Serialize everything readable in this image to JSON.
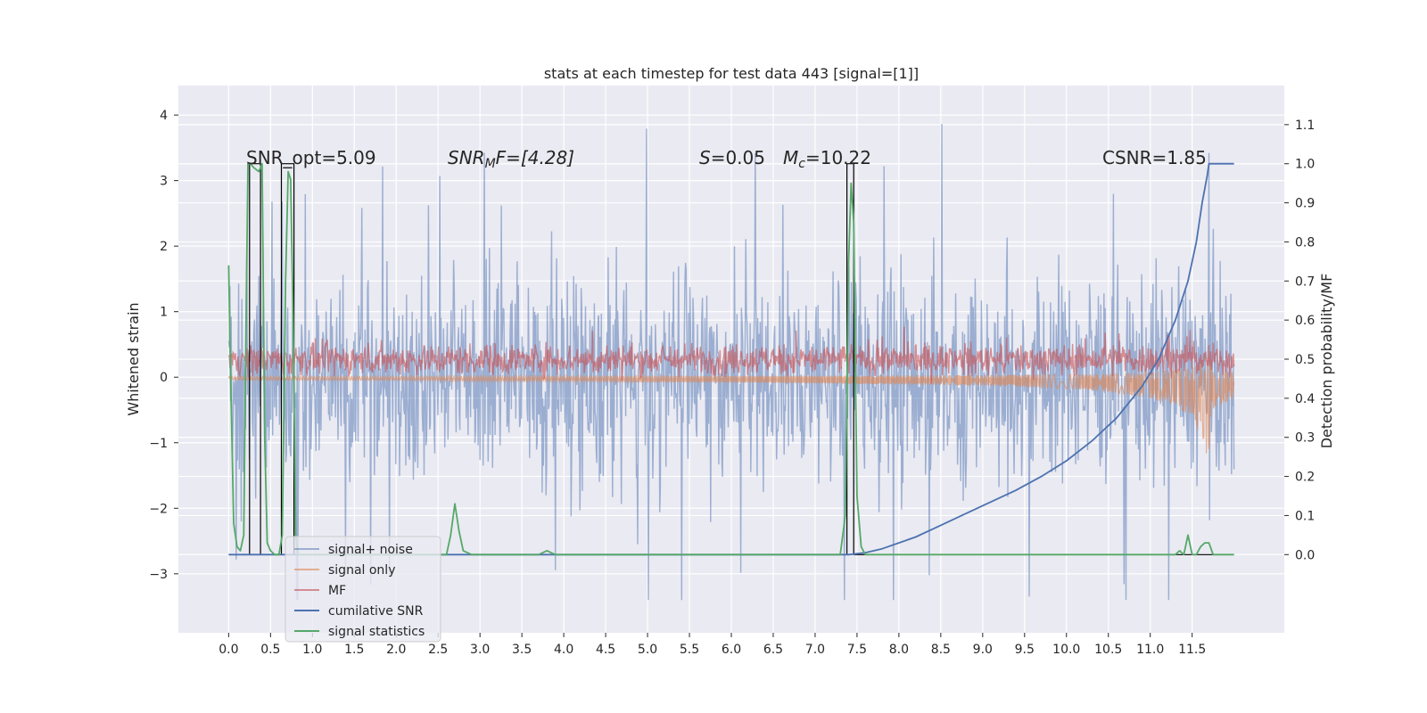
{
  "chart_data": {
    "type": "line",
    "title": "stats at each timestep for test data 443 [signal=[1]]",
    "ylabel_left": "Whitened strain",
    "ylabel_right": "Detection probability/MF",
    "x_ticks": [
      "0.0",
      "0.5",
      "1.0",
      "1.5",
      "2.0",
      "2.5",
      "3.0",
      "3.5",
      "4.0",
      "4.5",
      "5.0",
      "5.5",
      "6.0",
      "6.5",
      "7.0",
      "7.5",
      "8.0",
      "8.5",
      "9.0",
      "9.5",
      "10.0",
      "10.5",
      "11.0",
      "11.5"
    ],
    "x_range": [
      -0.6,
      12.6
    ],
    "y_left_ticks": [
      "4",
      "3",
      "2",
      "1",
      "0",
      "−1",
      "−2",
      "−3"
    ],
    "y_left_range": [
      -3.9,
      4.45
    ],
    "y_right_ticks": [
      "1.1",
      "1.0",
      "0.9",
      "0.8",
      "0.7",
      "0.6",
      "0.5",
      "0.4",
      "0.3",
      "0.2",
      "0.1",
      "0.0"
    ],
    "y_right_range": [
      -0.2,
      1.2
    ],
    "grid": true,
    "legend_position": "lower-left",
    "annotations": {
      "snr_opt": "SNR_opt=5.09",
      "snr_mf_label": "SNR",
      "snr_mf_sub": "M",
      "snr_mf_rest": "F=[4.28]",
      "s_label": "S",
      "s_value": "=0.05",
      "mc_label": "M",
      "mc_sub": "c",
      "mc_value": "=10.22",
      "csnr": "CSNR=1.85"
    },
    "series": [
      {
        "name": "signal+ noise",
        "color": "#4c72b0",
        "axis": "left",
        "description": "whitened strain noise, amplitude ~ -2.5..2.5 with spikes to ~4",
        "x_range": [
          0.0,
          12.0
        ]
      },
      {
        "name": "signal only",
        "color": "#dd8452",
        "axis": "left",
        "x": [
          0,
          1,
          2,
          3,
          4,
          5,
          6,
          7,
          8,
          9,
          10,
          10.5,
          11,
          11.3,
          11.5,
          11.62,
          11.68,
          11.75,
          12.0
        ],
        "envelope": [
          0.03,
          0.03,
          0.03,
          0.04,
          0.04,
          0.05,
          0.05,
          0.06,
          0.07,
          0.08,
          0.11,
          0.14,
          0.2,
          0.27,
          0.4,
          0.6,
          0.9,
          0.3,
          0.2
        ]
      },
      {
        "name": "MF",
        "color": "#c44e52",
        "axis": "left",
        "description": "matched-filter band around 0.25, amplitude ~ 0..0.6",
        "x_range": [
          0.0,
          12.0
        ]
      },
      {
        "name": "cumilative SNR",
        "color": "#4c72b0",
        "axis": "right",
        "x": [
          0,
          7.4,
          7.6,
          7.8,
          8.0,
          8.2,
          8.5,
          8.8,
          9.1,
          9.4,
          9.7,
          10.0,
          10.3,
          10.6,
          10.9,
          11.1,
          11.3,
          11.45,
          11.55,
          11.62,
          11.68,
          11.7,
          12.0
        ],
        "values": [
          0,
          0,
          0.005,
          0.015,
          0.03,
          0.045,
          0.075,
          0.105,
          0.135,
          0.165,
          0.2,
          0.24,
          0.29,
          0.35,
          0.43,
          0.5,
          0.6,
          0.7,
          0.8,
          0.9,
          0.97,
          1.0,
          1.0
        ]
      },
      {
        "name": "signal statistics",
        "color": "#55a868",
        "axis": "right",
        "x": [
          0.0,
          0.02,
          0.06,
          0.1,
          0.14,
          0.18,
          0.2,
          0.23,
          0.26,
          0.3,
          0.36,
          0.4,
          0.43,
          0.46,
          0.5,
          0.55,
          0.6,
          0.64,
          0.68,
          0.71,
          0.74,
          0.77,
          0.8,
          0.83,
          0.86,
          0.9,
          1.0,
          2.6,
          2.65,
          2.7,
          2.75,
          2.8,
          2.9,
          3.7,
          3.8,
          3.9,
          7.3,
          7.36,
          7.4,
          7.43,
          7.46,
          7.5,
          7.55,
          7.6,
          7.7,
          8.5,
          9.0,
          11.3,
          11.35,
          11.4,
          11.45,
          11.5,
          11.55,
          11.6,
          11.65,
          11.7,
          11.75,
          11.8,
          11.9,
          12.0
        ],
        "values": [
          0.74,
          0.5,
          0.08,
          0.02,
          0.01,
          0.05,
          0.45,
          1.0,
          1.0,
          0.99,
          0.98,
          1.0,
          0.3,
          0.03,
          0.01,
          0.0,
          0.0,
          0.05,
          0.7,
          0.98,
          0.96,
          0.6,
          0.05,
          0.0,
          0.0,
          0.0,
          0.0,
          0.0,
          0.05,
          0.13,
          0.06,
          0.01,
          0.0,
          0.0,
          0.01,
          0.0,
          0.0,
          0.1,
          0.75,
          0.95,
          0.85,
          0.15,
          0.02,
          0.0,
          0.0,
          0.0,
          0.0,
          0.0,
          0.01,
          0.0,
          0.05,
          0.0,
          0.0,
          0.02,
          0.03,
          0.03,
          0.0,
          0.0,
          0.0,
          0.0
        ]
      },
      {
        "name": "",
        "color": "#000000",
        "axis": "right",
        "description": "black square-pulse detection trace",
        "x": [
          0.0,
          0.25,
          0.25,
          0.38,
          0.38,
          0.63,
          0.63,
          0.78,
          0.78,
          7.38,
          7.38,
          7.46,
          7.46,
          12.0
        ],
        "values": [
          0,
          0,
          1,
          1,
          0,
          0,
          1,
          1,
          0,
          0,
          1,
          1,
          0,
          0
        ]
      }
    ]
  }
}
